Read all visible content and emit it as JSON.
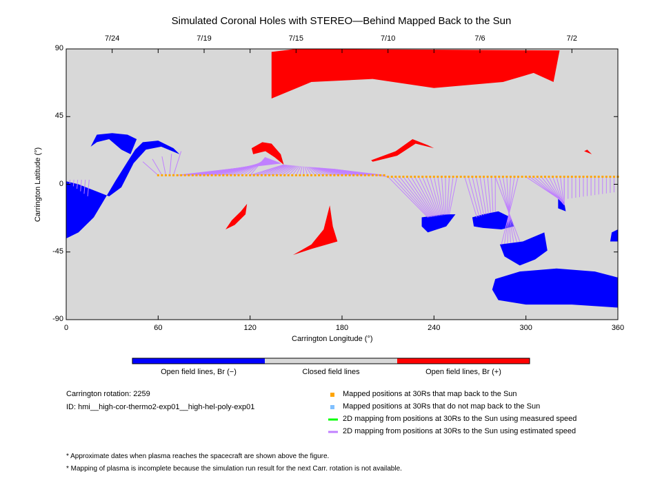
{
  "chart_data": {
    "type": "map",
    "title": "Simulated Coronal Holes with STEREO—Behind Mapped Back to the Sun",
    "xlabel": "Carrington Longitude (°)",
    "ylabel": "Carrington Latitude (°)",
    "xlim": [
      0,
      360
    ],
    "ylim": [
      -90,
      90
    ],
    "xticks": [
      0,
      60,
      120,
      180,
      240,
      300,
      360
    ],
    "yticks": [
      -90,
      -45,
      0,
      45,
      90
    ],
    "top_axis": {
      "labels": [
        "7/24",
        "7/19",
        "7/15",
        "7/10",
        "7/6",
        "7/2"
      ],
      "longitudes": [
        30,
        90,
        150,
        210,
        270,
        330
      ]
    },
    "colors": {
      "negative": "#0000ff",
      "closed": "#d8d8d8",
      "positive": "#ff0000",
      "mapped": "#ffa500",
      "unmapped": "#80c0ff",
      "measured": "#00ff00",
      "estimated": "#c080ff"
    },
    "regions": [
      {
        "polarity": "positive",
        "points": [
          [
            134,
            88
          ],
          [
            150,
            90
          ],
          [
            322,
            89
          ],
          [
            318,
            68
          ],
          [
            305,
            74
          ],
          [
            285,
            68
          ],
          [
            240,
            64
          ],
          [
            200,
            70
          ],
          [
            160,
            68
          ],
          [
            134,
            57
          ]
        ]
      },
      {
        "polarity": "positive",
        "points": [
          [
            121,
            24
          ],
          [
            128,
            28
          ],
          [
            134,
            27
          ],
          [
            140,
            20
          ],
          [
            142,
            13
          ],
          [
            136,
            18
          ],
          [
            130,
            22
          ],
          [
            122,
            20
          ]
        ]
      },
      {
        "polarity": "positive",
        "points": [
          [
            199,
            16
          ],
          [
            215,
            22
          ],
          [
            226,
            30
          ],
          [
            236,
            26
          ],
          [
            240,
            24
          ],
          [
            228,
            27
          ],
          [
            216,
            19
          ],
          [
            200,
            15
          ]
        ]
      },
      {
        "polarity": "positive",
        "points": [
          [
            118,
            -13
          ],
          [
            117,
            -20
          ],
          [
            110,
            -27
          ],
          [
            104,
            -30
          ],
          [
            108,
            -24
          ],
          [
            114,
            -18
          ]
        ]
      },
      {
        "polarity": "positive",
        "points": [
          [
            172,
            -14
          ],
          [
            174,
            -28
          ],
          [
            177,
            -38
          ],
          [
            160,
            -43
          ],
          [
            148,
            -47
          ],
          [
            160,
            -40
          ],
          [
            168,
            -30
          ]
        ]
      },
      {
        "polarity": "positive",
        "points": [
          [
            340,
            23
          ],
          [
            343,
            20
          ],
          [
            338,
            22
          ]
        ]
      },
      {
        "polarity": "negative",
        "points": [
          [
            0,
            -36
          ],
          [
            8,
            -32
          ],
          [
            18,
            -22
          ],
          [
            25,
            -10
          ],
          [
            32,
            2
          ],
          [
            40,
            15
          ],
          [
            45,
            23
          ],
          [
            50,
            28
          ],
          [
            60,
            29
          ],
          [
            70,
            24
          ],
          [
            74,
            20
          ],
          [
            62,
            25
          ],
          [
            52,
            23
          ],
          [
            44,
            14
          ],
          [
            36,
            -2
          ],
          [
            28,
            -8
          ],
          [
            18,
            -4
          ],
          [
            8,
            0
          ],
          [
            0,
            2
          ]
        ]
      },
      {
        "polarity": "negative",
        "points": [
          [
            16,
            25
          ],
          [
            20,
            33
          ],
          [
            30,
            34
          ],
          [
            40,
            33
          ],
          [
            46,
            30
          ],
          [
            42,
            20
          ],
          [
            36,
            23
          ],
          [
            28,
            30
          ],
          [
            20,
            28
          ]
        ]
      },
      {
        "polarity": "negative",
        "points": [
          [
            232,
            -22
          ],
          [
            246,
            -20
          ],
          [
            254,
            -20
          ],
          [
            248,
            -28
          ],
          [
            236,
            -32
          ],
          [
            232,
            -28
          ]
        ]
      },
      {
        "polarity": "negative",
        "points": [
          [
            265,
            -22
          ],
          [
            272,
            -20
          ],
          [
            282,
            -18
          ],
          [
            290,
            -22
          ],
          [
            292,
            -28
          ],
          [
            284,
            -30
          ],
          [
            272,
            -29
          ],
          [
            266,
            -28
          ]
        ]
      },
      {
        "polarity": "negative",
        "points": [
          [
            283,
            -40
          ],
          [
            298,
            -38
          ],
          [
            312,
            -32
          ],
          [
            314,
            -44
          ],
          [
            306,
            -50
          ],
          [
            296,
            -54
          ],
          [
            286,
            -48
          ]
        ]
      },
      {
        "polarity": "negative",
        "points": [
          [
            280,
            -63
          ],
          [
            296,
            -58
          ],
          [
            320,
            -56
          ],
          [
            345,
            -58
          ],
          [
            360,
            -62
          ],
          [
            360,
            -82
          ],
          [
            330,
            -80
          ],
          [
            300,
            -80
          ],
          [
            282,
            -77
          ],
          [
            278,
            -70
          ]
        ]
      },
      {
        "polarity": "negative",
        "points": [
          [
            321,
            -8
          ],
          [
            325,
            -12
          ],
          [
            326,
            -18
          ],
          [
            321,
            -16
          ]
        ]
      },
      {
        "polarity": "negative",
        "points": [
          [
            356,
            -32
          ],
          [
            360,
            -30
          ],
          [
            360,
            -38
          ],
          [
            355,
            -38
          ]
        ]
      }
    ],
    "mapped_points": {
      "lon_start": 60,
      "lon_end": 360,
      "step": 2.5,
      "lat_left": 6,
      "lat_right": 5
    },
    "mapping_groups": [
      {
        "src": [
          0,
          15
        ],
        "dst": [
          [
            0,
            2
          ],
          [
            14,
            -8
          ]
        ]
      },
      {
        "src": [
          60,
          70
        ],
        "dst": [
          [
            50,
            15
          ],
          [
            75,
            22
          ]
        ]
      },
      {
        "src": [
          72,
          120
        ],
        "dst": [
          [
            140,
            14
          ],
          [
            130,
            18
          ]
        ]
      },
      {
        "src": [
          120,
          210
        ],
        "dst": [
          [
            142,
            13
          ],
          [
            175,
            10
          ]
        ]
      },
      {
        "src": [
          210,
          255
        ],
        "dst": [
          [
            236,
            -22
          ],
          [
            250,
            -20
          ]
        ]
      },
      {
        "src": [
          258,
          280
        ],
        "dst": [
          [
            268,
            -22
          ],
          [
            280,
            -18
          ]
        ]
      },
      {
        "src": [
          280,
          295
        ],
        "dst": [
          [
            296,
            -38
          ],
          [
            284,
            -40
          ]
        ]
      },
      {
        "src": [
          298,
          325
        ],
        "dst": [
          [
            322,
            -10
          ],
          [
            325,
            -14
          ]
        ]
      },
      {
        "src": [
          325,
          360
        ],
        "dst": [
          [
            325,
            -10
          ],
          [
            360,
            -5
          ]
        ]
      }
    ],
    "colorbar": {
      "labels": [
        "Open field lines, Br (−)",
        "Closed field lines",
        "Open field lines, Br (+)"
      ]
    },
    "legend": [
      {
        "marker": "square",
        "color": "#ffa500",
        "label": "Mapped positions at 30Rs that map back to the Sun"
      },
      {
        "marker": "square",
        "color": "#80c0ff",
        "label": "Mapped positions at 30Rs that do not map back to the Sun"
      },
      {
        "marker": "line",
        "color": "#00ff00",
        "label": "2D mapping from positions at 30Rs to the Sun using measured speed"
      },
      {
        "marker": "line",
        "color": "#c080ff",
        "label": "2D mapping from positions at 30Rs to the Sun using estimated speed"
      }
    ]
  },
  "info": {
    "rotation": "Carrington rotation: 2259",
    "id": "ID: hmi__high-cor-thermo2-exp01__high-hel-poly-exp01"
  },
  "notes": [
    "* Approximate dates when plasma reaches the spacecraft are shown above the figure.",
    "* Mapping of plasma is incomplete because the simulation run result for the next Carr. rotation is not available."
  ]
}
